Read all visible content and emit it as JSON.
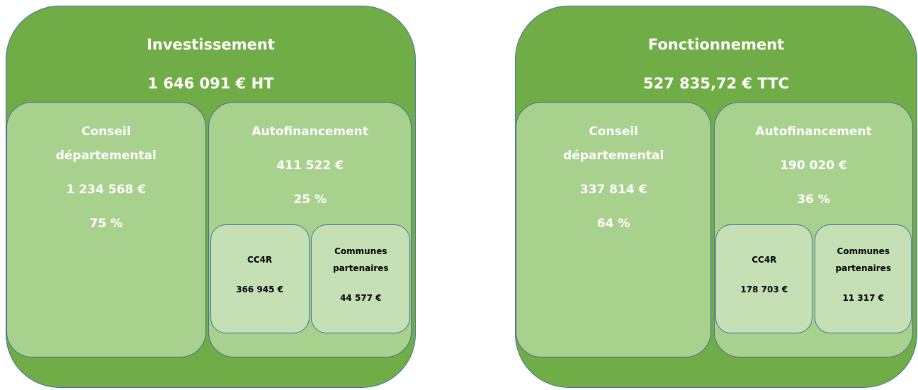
{
  "panels": [
    {
      "title": "Investissement",
      "amount": "1 646 091 € HT",
      "conseil": {
        "name": "Conseil départemental",
        "amount": "1 234 568 €",
        "percent": "75 %"
      },
      "autofinancement": {
        "name": "Autofinancement",
        "amount": "411 522 €",
        "percent": "25 %",
        "parts": [
          {
            "name": "CC4R",
            "amount": "366 945 €"
          },
          {
            "name": "Communes partenaires",
            "amount": "44 577 €"
          }
        ]
      }
    },
    {
      "title": "Fonctionnement",
      "amount": "527 835,72 € TTC",
      "conseil": {
        "name": "Conseil départemental",
        "amount": "337 814 €",
        "percent": "64 %"
      },
      "autofinancement": {
        "name": "Autofinancement",
        "amount": "190 020 €",
        "percent": "36 %",
        "parts": [
          {
            "name": "CC4R",
            "amount": "178 703 €"
          },
          {
            "name": "Communes partenaires",
            "amount": "11 317 €"
          }
        ]
      }
    }
  ]
}
